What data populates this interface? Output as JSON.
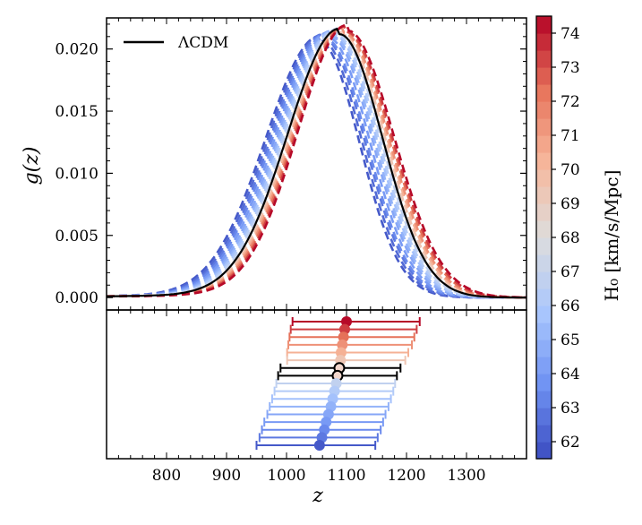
{
  "chart_data": [
    {
      "type": "line",
      "panel": "top",
      "ylabel": "g(z)",
      "xlabel": "",
      "xlim": [
        700,
        1400
      ],
      "ylim": [
        -0.001,
        0.0225
      ],
      "yticks": [
        0.0,
        0.005,
        0.01,
        0.015,
        0.02
      ],
      "ytick_labels": [
        "0.000",
        "0.005",
        "0.010",
        "0.015",
        "0.020"
      ],
      "legend": {
        "position": "top-left",
        "entries": [
          {
            "label": "ΛCDM",
            "style": "solid",
            "color": "#000000"
          }
        ]
      },
      "reference": {
        "name": "ΛCDM",
        "peak_z": 1088,
        "peak_g": 0.0212,
        "sigma_left": 86,
        "sigma_right": 72,
        "style": "solid",
        "color": "#000000"
      },
      "series": [
        {
          "H0": 61.9,
          "peak_z": 1055,
          "peak_g": 0.0206,
          "style": "dashed"
        },
        {
          "H0": 62.4,
          "peak_z": 1059,
          "peak_g": 0.0207,
          "style": "dashed"
        },
        {
          "H0": 62.9,
          "peak_z": 1063,
          "peak_g": 0.0208,
          "style": "dashed"
        },
        {
          "H0": 63.4,
          "peak_z": 1066,
          "peak_g": 0.0208,
          "style": "dashed"
        },
        {
          "H0": 64.0,
          "peak_z": 1070,
          "peak_g": 0.0209,
          "style": "dashed"
        },
        {
          "H0": 64.5,
          "peak_z": 1074,
          "peak_g": 0.021,
          "style": "dashed"
        },
        {
          "H0": 65.0,
          "peak_z": 1077,
          "peak_g": 0.021,
          "style": "dashed"
        },
        {
          "H0": 65.6,
          "peak_z": 1080,
          "peak_g": 0.0211,
          "style": "dashed"
        },
        {
          "H0": 66.2,
          "peak_z": 1083,
          "peak_g": 0.0211,
          "style": "dashed"
        },
        {
          "H0": 66.8,
          "peak_z": 1086,
          "peak_g": 0.0212,
          "style": "dashed"
        },
        {
          "H0": 68.4,
          "peak_z": 1090,
          "peak_g": 0.0212,
          "style": "dashed"
        },
        {
          "H0": 69.4,
          "peak_z": 1091,
          "peak_g": 0.0212,
          "style": "dashed"
        },
        {
          "H0": 70.4,
          "peak_z": 1093,
          "peak_g": 0.0213,
          "style": "dashed"
        },
        {
          "H0": 71.4,
          "peak_z": 1095,
          "peak_g": 0.0213,
          "style": "dashed"
        },
        {
          "H0": 72.4,
          "peak_z": 1097,
          "peak_g": 0.0214,
          "style": "dashed"
        },
        {
          "H0": 73.4,
          "peak_z": 1099,
          "peak_g": 0.0214,
          "style": "dashed"
        },
        {
          "H0": 74.4,
          "peak_z": 1101,
          "peak_g": 0.0215,
          "style": "dashed"
        }
      ]
    },
    {
      "type": "scatter",
      "panel": "bottom",
      "xlabel": "z",
      "xlim": [
        700,
        1400
      ],
      "xticks": [
        800,
        900,
        1000,
        1100,
        1200,
        1300
      ],
      "xtick_labels": [
        "800",
        "900",
        "1000",
        "1100",
        "1200",
        "1300"
      ],
      "points": [
        {
          "H0": 74.4,
          "z": 1100,
          "err_low": 90,
          "err_high": 122,
          "marker": "filled"
        },
        {
          "H0": 73.4,
          "z": 1097,
          "err_low": 90,
          "err_high": 120,
          "marker": "filled"
        },
        {
          "H0": 72.4,
          "z": 1095,
          "err_low": 90,
          "err_high": 118,
          "marker": "filled"
        },
        {
          "H0": 71.4,
          "z": 1093,
          "err_low": 90,
          "err_high": 116,
          "marker": "filled"
        },
        {
          "H0": 70.4,
          "z": 1091,
          "err_low": 90,
          "err_high": 112,
          "marker": "filled"
        },
        {
          "H0": 69.4,
          "z": 1090,
          "err_low": 89,
          "err_high": 108,
          "marker": "filled"
        },
        {
          "H0": 68.4,
          "z": 1088,
          "err_low": 98,
          "err_high": 102,
          "marker": "open",
          "edge": "#000000"
        },
        {
          "H0": 67.6,
          "z": 1085,
          "err_low": 99,
          "err_high": 99,
          "marker": "open",
          "edge": "#000000"
        },
        {
          "H0": 66.8,
          "z": 1083,
          "err_low": 100,
          "err_high": 98,
          "marker": "filled"
        },
        {
          "H0": 66.2,
          "z": 1080,
          "err_low": 100,
          "err_high": 98,
          "marker": "filled"
        },
        {
          "H0": 65.6,
          "z": 1077,
          "err_low": 101,
          "err_high": 97,
          "marker": "filled"
        },
        {
          "H0": 65.0,
          "z": 1074,
          "err_low": 102,
          "err_high": 96,
          "marker": "filled"
        },
        {
          "H0": 64.5,
          "z": 1070,
          "err_low": 102,
          "err_high": 95,
          "marker": "filled"
        },
        {
          "H0": 64.0,
          "z": 1066,
          "err_low": 103,
          "err_high": 95,
          "marker": "filled"
        },
        {
          "H0": 63.4,
          "z": 1063,
          "err_low": 104,
          "err_high": 94,
          "marker": "filled"
        },
        {
          "H0": 62.9,
          "z": 1059,
          "err_low": 104,
          "err_high": 93,
          "marker": "filled"
        },
        {
          "H0": 61.9,
          "z": 1055,
          "err_low": 105,
          "err_high": 93,
          "marker": "filled"
        }
      ]
    },
    {
      "type": "colorbar",
      "label": "H₀ [km/s/Mpc]",
      "range": [
        61.5,
        74.5
      ],
      "n_bins": 26,
      "ticks": [
        62,
        63,
        64,
        65,
        66,
        67,
        68,
        69,
        70,
        71,
        72,
        73,
        74
      ],
      "tick_labels": [
        "62",
        "63",
        "64",
        "65",
        "66",
        "67",
        "68",
        "69",
        "70",
        "71",
        "72",
        "73",
        "74"
      ],
      "colormap": [
        "#3b4cc0",
        "#6f92f3",
        "#aac7fd",
        "#dddddd",
        "#f7b89c",
        "#e7745b",
        "#b40426"
      ]
    }
  ]
}
